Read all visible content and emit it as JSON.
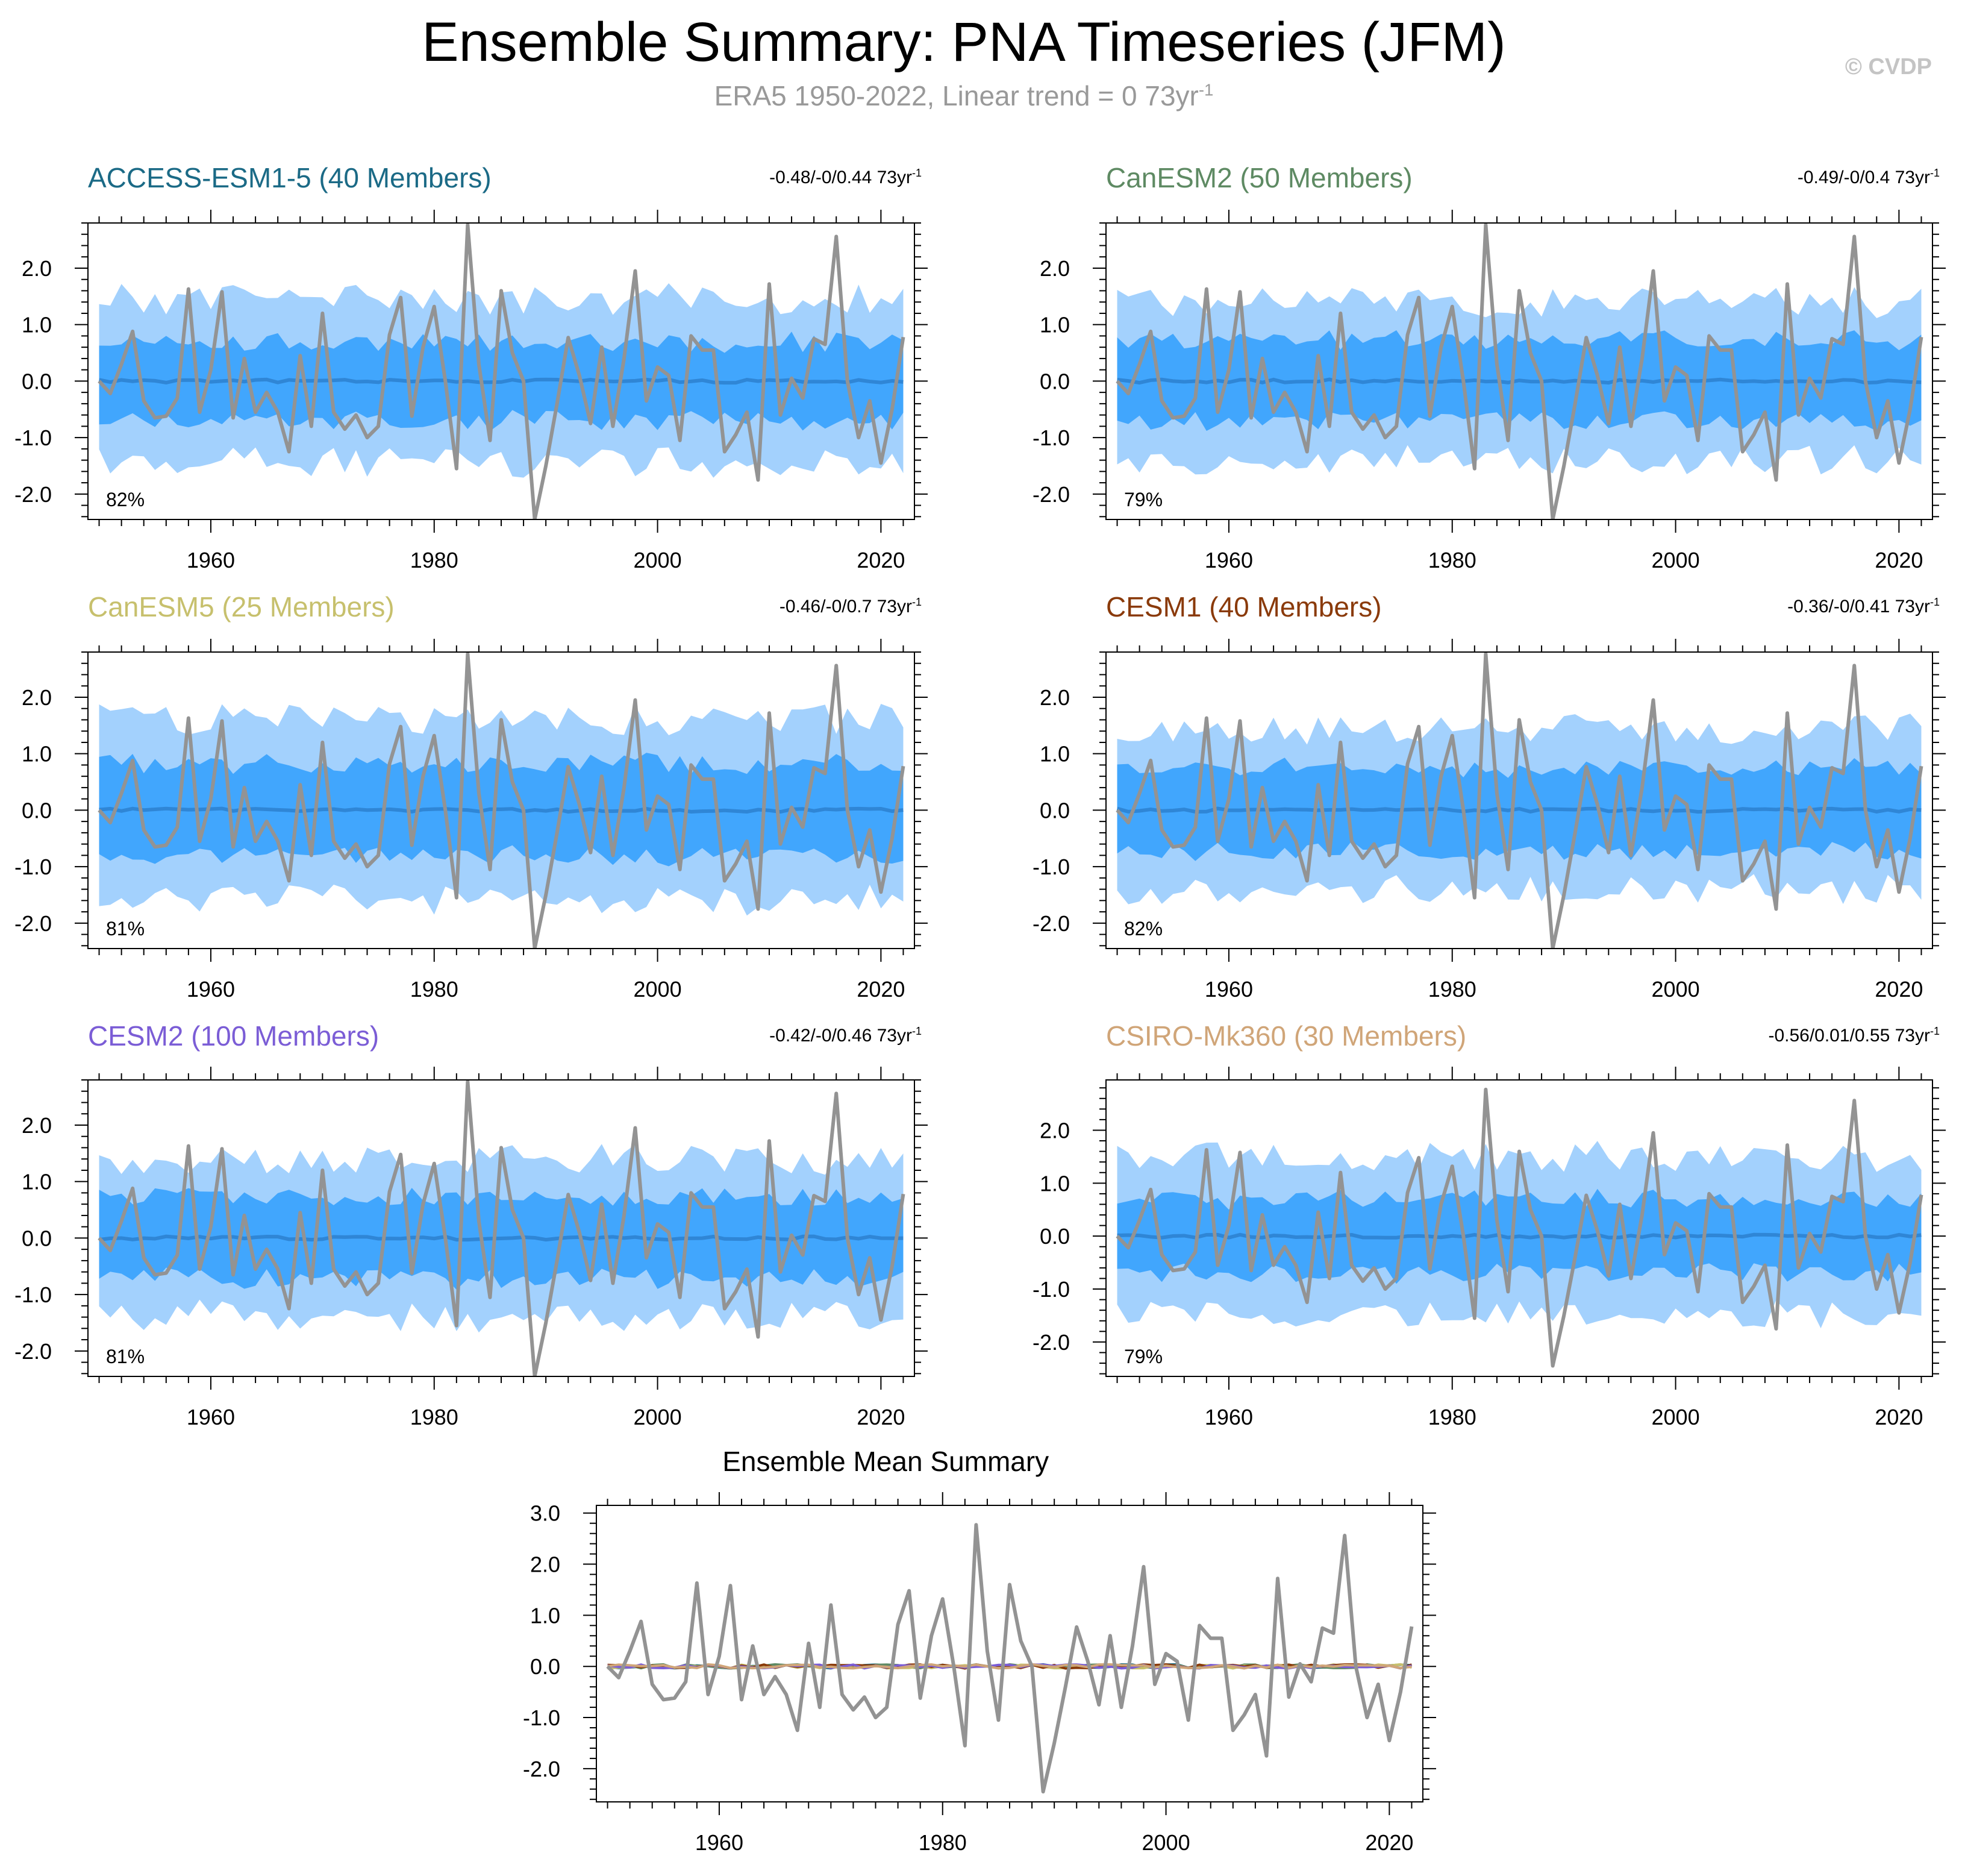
{
  "header": {
    "title": "Ensemble Summary: PNA Timeseries (JFM)",
    "subtitle_main": "ERA5 1950-2022, Linear trend = 0 73yr",
    "subtitle_exp": "-1",
    "copyright": "© CVDP"
  },
  "colors": {
    "outer_band": "#a3d1fd",
    "inner_band": "#41a6fd",
    "ens_mean": "#2f86d6",
    "obs": "#939393"
  },
  "chart_data": [
    {
      "type": "area",
      "name": "ACCESS-ESM1-5 (40 Members)",
      "title_color": "#1b6a86",
      "trend_text": "-0.48/-0/0.44 73yr",
      "trend_exp": "-1",
      "percent_label": "82%",
      "xlim": [
        1949,
        2023
      ],
      "ylim": [
        -2.45,
        2.8
      ],
      "xticks": [
        1960,
        1980,
        2000,
        2020
      ],
      "yticks": [
        2.0,
        1.0,
        0.0,
        -1.0,
        -2.0
      ],
      "ytick_labels": [
        "2.0",
        "1.0",
        "0.0",
        "-1.0",
        "-2.0"
      ],
      "outer_amp": 1.45,
      "inner_amp": 0.7,
      "seed": 11
    },
    {
      "type": "area",
      "name": "CanESM2 (50 Members)",
      "title_color": "#5e8a63",
      "trend_text": "-0.49/-0/0.4 73yr",
      "trend_exp": "-1",
      "percent_label": "79%",
      "xlim": [
        1949,
        2023
      ],
      "ylim": [
        -2.45,
        2.8
      ],
      "xticks": [
        1960,
        1980,
        2000,
        2020
      ],
      "yticks": [
        2.0,
        1.0,
        0.0,
        -1.0,
        -2.0
      ],
      "ytick_labels": [
        "2.0",
        "1.0",
        "0.0",
        "-1.0",
        "-2.0"
      ],
      "outer_amp": 1.4,
      "inner_amp": 0.72,
      "seed": 23
    },
    {
      "type": "area",
      "name": "CanESM5 (25 Members)",
      "title_color": "#c7c06d",
      "trend_text": "-0.46/-0/0.7 73yr",
      "trend_exp": "-1",
      "percent_label": "81%",
      "xlim": [
        1949,
        2023
      ],
      "ylim": [
        -2.45,
        2.8
      ],
      "xticks": [
        1960,
        1980,
        2000,
        2020
      ],
      "yticks": [
        2.0,
        1.0,
        0.0,
        -1.0,
        -2.0
      ],
      "ytick_labels": [
        "2.0",
        "1.0",
        "0.0",
        "-1.0",
        "-2.0"
      ],
      "outer_amp": 1.6,
      "inner_amp": 0.82,
      "seed": 37
    },
    {
      "type": "area",
      "name": "CESM1 (40 Members)",
      "title_color": "#8a3a0a",
      "trend_text": "-0.36/-0/0.41 73yr",
      "trend_exp": "-1",
      "percent_label": "82%",
      "xlim": [
        1949,
        2023
      ],
      "ylim": [
        -2.45,
        2.8
      ],
      "xticks": [
        1960,
        1980,
        2000,
        2020
      ],
      "yticks": [
        2.0,
        1.0,
        0.0,
        -1.0,
        -2.0
      ],
      "ytick_labels": [
        "2.0",
        "1.0",
        "0.0",
        "-1.0",
        "-2.0"
      ],
      "outer_amp": 1.42,
      "inner_amp": 0.74,
      "seed": 41
    },
    {
      "type": "area",
      "name": "CESM2 (100 Members)",
      "title_color": "#7b5dd6",
      "trend_text": "-0.42/-0/0.46 73yr",
      "trend_exp": "-1",
      "percent_label": "81%",
      "xlim": [
        1949,
        2023
      ],
      "ylim": [
        -2.45,
        2.8
      ],
      "xticks": [
        1960,
        1980,
        2000,
        2020
      ],
      "yticks": [
        2.0,
        1.0,
        0.0,
        -1.0,
        -2.0
      ],
      "ytick_labels": [
        "2.0",
        "1.0",
        "0.0",
        "-1.0",
        "-2.0"
      ],
      "outer_amp": 1.38,
      "inner_amp": 0.72,
      "seed": 53
    },
    {
      "type": "area",
      "name": "CSIRO-Mk360 (30 Members)",
      "title_color": "#d0a578",
      "trend_text": "-0.56/0.01/0.55 73yr",
      "trend_exp": "-1",
      "percent_label": "79%",
      "xlim": [
        1949,
        2023
      ],
      "ylim": [
        -2.65,
        2.95
      ],
      "xticks": [
        1960,
        1980,
        2000,
        2020
      ],
      "yticks": [
        2.0,
        1.0,
        0.0,
        -1.0,
        -2.0
      ],
      "ytick_labels": [
        "2.0",
        "1.0",
        "0.0",
        "-1.0",
        "-2.0"
      ],
      "outer_amp": 1.5,
      "inner_amp": 0.7,
      "seed": 67
    },
    {
      "type": "line",
      "name": "Ensemble Mean Summary",
      "title_color": "#000000",
      "xlim": [
        1949,
        2023
      ],
      "ylim": [
        -2.65,
        3.15
      ],
      "xticks": [
        1960,
        1980,
        2000,
        2020
      ],
      "yticks": [
        3.0,
        2.0,
        1.0,
        0.0,
        -1.0,
        -2.0
      ],
      "ytick_labels": [
        "3.0",
        "2.0",
        "1.0",
        "0.0",
        "-1.0",
        "-2.0"
      ],
      "series_colors": [
        "#1b6a86",
        "#5e8a63",
        "#c7c06d",
        "#8a3a0a",
        "#7b5dd6",
        "#d0a578"
      ]
    }
  ],
  "observed": {
    "name": "ERA5",
    "years": [
      1950,
      1951,
      1952,
      1953,
      1954,
      1955,
      1956,
      1957,
      1958,
      1959,
      1960,
      1961,
      1962,
      1963,
      1964,
      1965,
      1966,
      1967,
      1968,
      1969,
      1970,
      1971,
      1972,
      1973,
      1974,
      1975,
      1976,
      1977,
      1978,
      1979,
      1980,
      1981,
      1982,
      1983,
      1984,
      1985,
      1986,
      1987,
      1988,
      1989,
      1990,
      1991,
      1992,
      1993,
      1994,
      1995,
      1996,
      1997,
      1998,
      1999,
      2000,
      2001,
      2002,
      2003,
      2004,
      2005,
      2006,
      2007,
      2008,
      2009,
      2010,
      2011,
      2012,
      2013,
      2014,
      2015,
      2016,
      2017,
      2018,
      2019,
      2020,
      2021,
      2022
    ],
    "values": [
      0.0,
      -0.22,
      0.3,
      0.88,
      -0.35,
      -0.65,
      -0.62,
      -0.3,
      1.63,
      -0.55,
      0.2,
      1.58,
      -0.65,
      0.4,
      -0.55,
      -0.2,
      -0.55,
      -1.25,
      0.45,
      -0.8,
      1.2,
      -0.55,
      -0.85,
      -0.6,
      -1.0,
      -0.8,
      0.82,
      1.48,
      -0.62,
      0.6,
      1.32,
      0.0,
      -1.55,
      2.77,
      0.3,
      -1.05,
      1.6,
      0.5,
      0.0,
      -2.45,
      -1.5,
      -0.4,
      0.77,
      0.1,
      -0.75,
      0.6,
      -0.8,
      0.4,
      1.95,
      -0.35,
      0.25,
      0.1,
      -1.05,
      0.8,
      0.55,
      0.55,
      -1.25,
      -0.95,
      -0.55,
      -1.75,
      1.72,
      -0.6,
      0.05,
      -0.3,
      0.75,
      0.65,
      2.56,
      0.0,
      -1.0,
      -0.35,
      -1.45,
      -0.5,
      0.78
    ]
  }
}
